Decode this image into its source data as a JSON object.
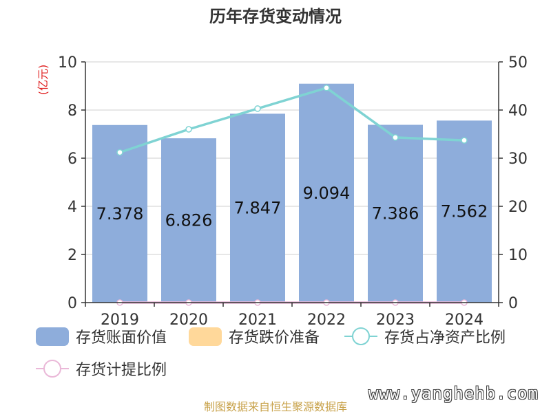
{
  "chart_data": {
    "type": "bar",
    "title": "历年存货变动情况",
    "ylabel_left": "(亿元)",
    "ylim_left": [
      0,
      10
    ],
    "yticks_left": [
      0,
      2,
      4,
      6,
      8,
      10
    ],
    "ylim_right": [
      0,
      50
    ],
    "yticks_right": [
      0,
      10,
      20,
      30,
      40,
      50
    ],
    "categories": [
      "2019",
      "2020",
      "2021",
      "2022",
      "2023",
      "2024"
    ],
    "series": [
      {
        "name": "存货账面价值",
        "kind": "bar",
        "axis": "left",
        "color": "#8eaddb",
        "values": [
          7.378,
          6.826,
          7.847,
          9.094,
          7.386,
          7.562
        ],
        "labels": [
          "7.378",
          "6.826",
          "7.847",
          "9.094",
          "7.386",
          "7.562"
        ]
      },
      {
        "name": "存货跌价准备",
        "kind": "bar",
        "axis": "left",
        "color": "#ffd89a",
        "values": [
          0,
          0,
          0,
          0,
          0,
          0
        ]
      },
      {
        "name": "存货占净资产比例",
        "kind": "line",
        "axis": "right",
        "color": "#7fd3d3",
        "values": [
          31.2,
          36.0,
          40.3,
          44.6,
          34.3,
          33.7
        ]
      },
      {
        "name": "存货计提比例",
        "kind": "line",
        "axis": "right",
        "color": "#eab8d8",
        "values": [
          0,
          0,
          0,
          0,
          0,
          0
        ]
      }
    ],
    "grid": true,
    "legend_position": "bottom"
  },
  "footer": {
    "source": "制图数据来自恒生聚源数据库",
    "watermark": "www.yanghehb.com"
  }
}
